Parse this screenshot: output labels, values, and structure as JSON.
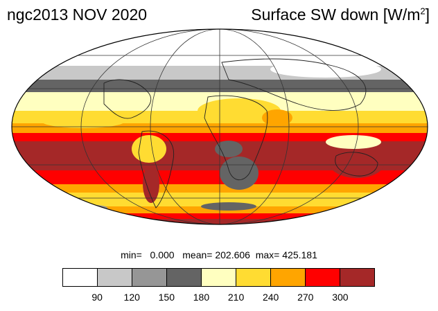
{
  "title_left": "ngc2013 NOV 2020",
  "title_right": {
    "prefix": "Surface SW down [W/m",
    "superscript": "2",
    "suffix": "]"
  },
  "stats": {
    "min_label": "min=",
    "min_value": "0.000",
    "mean_label": "mean=",
    "mean_value": "202.606",
    "max_label": "max=",
    "max_value": "425.181"
  },
  "colorbar": {
    "colors": [
      "#ffffff",
      "#c8c8c8",
      "#969696",
      "#646464",
      "#ffffc0",
      "#ffdc32",
      "#ffa500",
      "#ff0000",
      "#a52828"
    ],
    "tick_labels": [
      "90",
      "120",
      "150",
      "180",
      "210",
      "240",
      "270",
      "300"
    ]
  },
  "map": {
    "projection": "mollweide",
    "colors": {
      "ocean_bg": "#ffff6e",
      "white": "#ffffff",
      "light_gray": "#c8c8c8",
      "mid_gray": "#969696",
      "dark_gray": "#646464",
      "pale_yellow": "#ffffc0",
      "yellow": "#ffdc32",
      "orange": "#ffa500",
      "red": "#ff0000",
      "dark_red": "#a52828"
    }
  }
}
